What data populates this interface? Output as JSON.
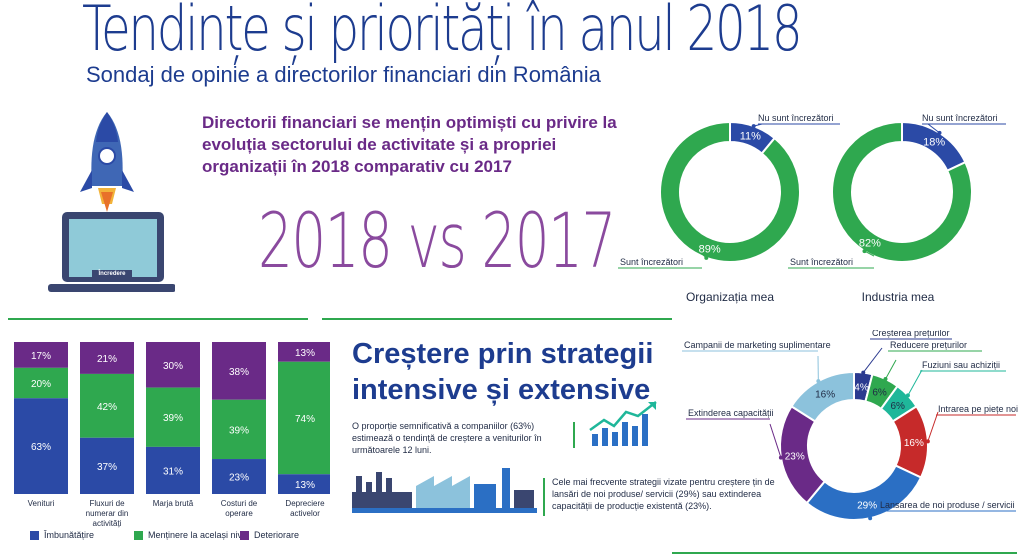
{
  "header": {
    "title": "Tendințe și priorități în anul 2018",
    "subtitle": "Sondaj de opinie a directorilor financiari din România"
  },
  "intro": {
    "lead": "Directorii financiari se mențin optimiști cu privire la evoluția sectorului de activitate și a propriei organizații în 2018 comparativ cu 2017",
    "vs_label": "2018 vs 2017",
    "laptop_label": "Încredere"
  },
  "growth": {
    "heading": "Creștere prin strategii intensive și extensive",
    "stat_text": "O proporție semnificativă a companiilor (63%) estimează o tendință de creștere a veniturilor în următoarele 12 luni.",
    "strategy_text": "Cele mai frecvente strategii vizate pentru creștere țin de lansări de noi produse/ servicii (29%) sau extinderea capacității de producție existentă (23%)."
  },
  "colors": {
    "blue": "#2b4aa6",
    "green": "#2fa84f",
    "purple": "#6a2a87",
    "lightblue": "#8cc2dc",
    "teal": "#1fb79a",
    "red": "#c62a2a",
    "navy": "#2b3a8f"
  },
  "chart_data": [
    {
      "type": "pie",
      "variant": "donut",
      "caption": "Organizația mea",
      "slices": [
        {
          "label": "Nu sunt încrezători",
          "value": 11,
          "text": "11%",
          "color": "#2b4aa6"
        },
        {
          "label": "Sunt încrezători",
          "value": 89,
          "text": "89%",
          "color": "#2fa84f"
        }
      ]
    },
    {
      "type": "pie",
      "variant": "donut",
      "caption": "Industria mea",
      "slices": [
        {
          "label": "Nu sunt încrezători",
          "value": 18,
          "text": "18%",
          "color": "#2b4aa6"
        },
        {
          "label": "Sunt încrezători",
          "value": 82,
          "text": "82%",
          "color": "#2fa84f"
        }
      ]
    },
    {
      "type": "bar",
      "stacked": true,
      "categories": [
        "Venituri",
        "Fluxuri de numerar din activități operaționale",
        "Marja brută",
        "Costuri de operare",
        "Depreciere activelor"
      ],
      "series": [
        {
          "name": "Îmbunătățire",
          "color": "#2b4aa6",
          "values": [
            63,
            37,
            31,
            23,
            13
          ]
        },
        {
          "name": "Menținere la același nivel",
          "color": "#2fa84f",
          "values": [
            20,
            42,
            39,
            39,
            74
          ]
        },
        {
          "name": "Deteriorare",
          "color": "#6a2a87",
          "values": [
            17,
            21,
            30,
            38,
            13
          ]
        }
      ],
      "ylim": [
        0,
        100
      ],
      "legend_position": "bottom"
    },
    {
      "type": "pie",
      "variant": "donut",
      "slices": [
        {
          "label": "Creșterea prețurilor",
          "value": 4,
          "text": "4%",
          "color": "#2b3a8f"
        },
        {
          "label": "Reducere prețurilor",
          "value": 6,
          "text": "6%",
          "color": "#2fa84f"
        },
        {
          "label": "Fuziuni sau achiziții",
          "value": 6,
          "text": "6%",
          "color": "#1fb79a"
        },
        {
          "label": "Intrarea pe piețe noi",
          "value": 16,
          "text": "16%",
          "color": "#c62a2a"
        },
        {
          "label": "Lansarea de noi produse / servicii",
          "value": 29,
          "text": "29%",
          "color": "#2b6fc4"
        },
        {
          "label": "Extinderea capacității",
          "value": 23,
          "text": "23%",
          "color": "#6a2a87"
        },
        {
          "label": "Campanii de marketing suplimentare",
          "value": 16,
          "text": "16%",
          "color": "#8cc2dc"
        }
      ]
    }
  ]
}
